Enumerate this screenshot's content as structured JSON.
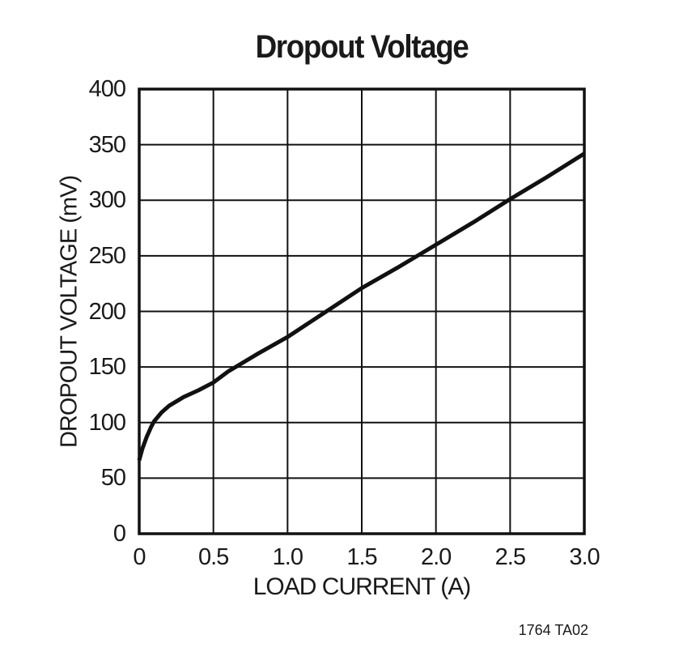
{
  "figure": {
    "title": "Dropout Voltage",
    "annotation": "1764 TA02"
  },
  "chart_data": {
    "type": "line",
    "title": "Dropout Voltage",
    "xlabel": "LOAD CURRENT (A)",
    "ylabel": "DROPOUT VOLTAGE (mV)",
    "xlim": [
      0,
      3.0
    ],
    "ylim": [
      0,
      400
    ],
    "x_ticks": [
      {
        "value": 0,
        "label": "0"
      },
      {
        "value": 0.5,
        "label": "0.5"
      },
      {
        "value": 1.0,
        "label": "1.0"
      },
      {
        "value": 1.5,
        "label": "1.5"
      },
      {
        "value": 2.0,
        "label": "2.0"
      },
      {
        "value": 2.5,
        "label": "2.5"
      },
      {
        "value": 3.0,
        "label": "3.0"
      }
    ],
    "y_ticks": [
      {
        "value": 0,
        "label": "0"
      },
      {
        "value": 50,
        "label": "50"
      },
      {
        "value": 100,
        "label": "100"
      },
      {
        "value": 150,
        "label": "150"
      },
      {
        "value": 200,
        "label": "200"
      },
      {
        "value": 250,
        "label": "250"
      },
      {
        "value": 300,
        "label": "300"
      },
      {
        "value": 350,
        "label": "350"
      },
      {
        "value": 400,
        "label": "400"
      }
    ],
    "grid": true,
    "legend": "none",
    "colors": {
      "curve": "#111111",
      "grid": "#111111",
      "frame": "#111111",
      "background": "#ffffff"
    },
    "series": [
      {
        "name": "dropout-voltage-curve",
        "points": [
          [
            0.0,
            66
          ],
          [
            0.02,
            76
          ],
          [
            0.05,
            87
          ],
          [
            0.08,
            96
          ],
          [
            0.1,
            101
          ],
          [
            0.15,
            109
          ],
          [
            0.2,
            115
          ],
          [
            0.3,
            123
          ],
          [
            0.4,
            129
          ],
          [
            0.5,
            136
          ],
          [
            0.6,
            146
          ],
          [
            0.8,
            162
          ],
          [
            1.0,
            177
          ],
          [
            1.25,
            199
          ],
          [
            1.5,
            221
          ],
          [
            1.75,
            240
          ],
          [
            2.0,
            260
          ],
          [
            2.25,
            280
          ],
          [
            2.5,
            301
          ],
          [
            2.75,
            321
          ],
          [
            3.0,
            342
          ]
        ]
      }
    ],
    "annotation": "1764 TA02"
  }
}
